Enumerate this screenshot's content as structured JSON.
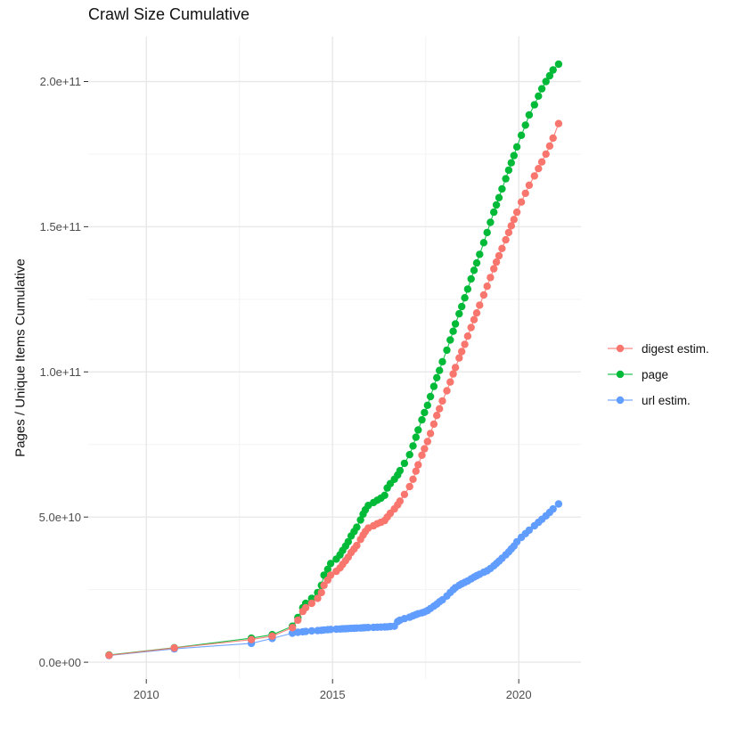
{
  "chart": {
    "title": "Crawl Size Cumulative",
    "ylabel": "Pages / Unique Items Cumulative"
  },
  "colors": {
    "background": "#FFFFFF",
    "grid_major": "#E8E8E8",
    "grid_minor": "#F3F3F3",
    "axis_tick": "#333333",
    "tick_label": "#4D4D4D",
    "text": "#111111"
  },
  "chart_data": {
    "type": "line",
    "title": "Crawl Size Cumulative",
    "ylabel": "Pages / Unique Items Cumulative",
    "legend_position": "right",
    "grid": true,
    "x_range_years": [
      2008.44,
      2021.67
    ],
    "y_range_billions": [
      -5.8,
      215.5
    ],
    "x_ticks": {
      "values": [
        2010,
        2015,
        2020
      ],
      "labels": [
        "2010",
        "2015",
        "2020"
      ]
    },
    "x_minor_ticks": [
      2012.5,
      2017.5
    ],
    "y_ticks": {
      "values_billions": [
        0,
        50,
        100,
        150,
        200
      ],
      "labels": [
        "0.0e+00",
        "5.0e+10",
        "1.0e+11",
        "1.5e+11",
        "2.0e+11"
      ]
    },
    "y_minor_ticks_billions": [
      25,
      75,
      125,
      175
    ],
    "x_years": [
      2009.0,
      2010.75,
      2012.82,
      2013.38,
      2013.92,
      2014.07,
      2014.2,
      2014.28,
      2014.44,
      2014.6,
      2014.7,
      2014.77,
      2014.87,
      2014.95,
      2015.1,
      2015.2,
      2015.27,
      2015.35,
      2015.42,
      2015.5,
      2015.58,
      2015.65,
      2015.75,
      2015.82,
      2015.88,
      2015.96,
      2016.1,
      2016.2,
      2016.3,
      2016.4,
      2016.47,
      2016.55,
      2016.66,
      2016.75,
      2016.81,
      2016.93,
      2017.07,
      2017.16,
      2017.24,
      2017.3,
      2017.4,
      2017.47,
      2017.55,
      2017.63,
      2017.72,
      2017.8,
      2017.87,
      2017.95,
      2018.07,
      2018.16,
      2018.24,
      2018.3,
      2018.4,
      2018.47,
      2018.55,
      2018.63,
      2018.72,
      2018.8,
      2018.87,
      2018.95,
      2019.06,
      2019.15,
      2019.24,
      2019.33,
      2019.4,
      2019.47,
      2019.55,
      2019.65,
      2019.73,
      2019.8,
      2019.87,
      2019.95,
      2020.07,
      2020.18,
      2020.28,
      2020.42,
      2020.53,
      2020.62,
      2020.73,
      2020.83,
      2020.92,
      2021.07
    ],
    "series": [
      {
        "name": "digest estim.",
        "color": "#F8766D",
        "values_billions": [
          2.4,
          4.9,
          7.8,
          9.0,
          11.9,
          14.5,
          17.5,
          18.8,
          20.3,
          22.0,
          24.0,
          26.5,
          28.3,
          30.0,
          31.3,
          32.5,
          33.7,
          35.0,
          36.2,
          37.8,
          39.0,
          40.2,
          42.3,
          43.8,
          45.0,
          46.2,
          47.0,
          47.7,
          48.2,
          48.8,
          50.0,
          51.3,
          52.8,
          54.2,
          55.5,
          57.8,
          60.5,
          63.0,
          65.8,
          68.0,
          71.3,
          73.5,
          76.0,
          78.8,
          82.0,
          85.0,
          87.3,
          90.0,
          93.5,
          96.5,
          99.3,
          101.5,
          104.8,
          107.0,
          109.5,
          112.3,
          115.3,
          118.0,
          120.3,
          123.0,
          126.5,
          129.5,
          132.5,
          135.5,
          137.8,
          140.0,
          142.5,
          145.5,
          148.0,
          150.3,
          152.5,
          155.0,
          158.5,
          161.5,
          164.3,
          167.5,
          170.0,
          172.3,
          175.0,
          177.8,
          180.5,
          185.5
        ]
      },
      {
        "name": "page",
        "color": "#00BA38",
        "values_billions": [
          2.5,
          5.0,
          8.3,
          9.5,
          12.4,
          15.4,
          18.8,
          20.3,
          22.0,
          24.0,
          26.5,
          30.0,
          32.0,
          34.0,
          35.5,
          37.0,
          38.5,
          40.0,
          41.5,
          43.5,
          45.0,
          46.5,
          49.0,
          51.0,
          52.5,
          54.0,
          55.0,
          55.8,
          56.5,
          57.5,
          60.0,
          61.5,
          63.0,
          64.5,
          66.0,
          68.5,
          71.5,
          74.5,
          77.5,
          80.0,
          83.5,
          86.0,
          88.5,
          91.5,
          95.0,
          98.0,
          100.5,
          103.5,
          107.5,
          111.0,
          114.0,
          116.5,
          120.0,
          122.5,
          125.5,
          128.5,
          132.0,
          135.0,
          137.5,
          140.5,
          144.5,
          148.0,
          151.5,
          155.0,
          157.5,
          160.0,
          163.0,
          166.5,
          169.5,
          172.0,
          174.5,
          177.5,
          181.5,
          185.0,
          188.5,
          192.0,
          195.0,
          197.5,
          200.0,
          202.0,
          204.0,
          206.0
        ]
      },
      {
        "name": "url estim.",
        "color": "#619CFF",
        "values_billions": [
          2.3,
          4.6,
          6.5,
          8.2,
          10.0,
          10.3,
          10.5,
          10.6,
          10.8,
          10.9,
          11.0,
          11.1,
          11.2,
          11.3,
          11.4,
          11.45,
          11.5,
          11.55,
          11.6,
          11.65,
          11.7,
          11.75,
          11.8,
          11.85,
          11.9,
          11.95,
          12.0,
          12.05,
          12.1,
          12.15,
          12.2,
          12.3,
          12.4,
          14.0,
          14.5,
          15.0,
          15.5,
          16.0,
          16.4,
          16.7,
          17.0,
          17.3,
          17.8,
          18.5,
          19.3,
          20.0,
          20.8,
          21.5,
          22.8,
          24.0,
          25.0,
          25.7,
          26.5,
          27.0,
          27.5,
          28.0,
          28.7,
          29.3,
          29.8,
          30.3,
          31.0,
          31.5,
          32.3,
          33.2,
          34.0,
          34.8,
          35.8,
          37.0,
          38.0,
          39.0,
          40.0,
          41.5,
          43.0,
          44.3,
          45.5,
          47.0,
          48.2,
          49.2,
          50.4,
          51.6,
          52.8,
          54.5
        ]
      }
    ],
    "draw_order": [
      "url estim.",
      "page",
      "digest estim."
    ]
  }
}
